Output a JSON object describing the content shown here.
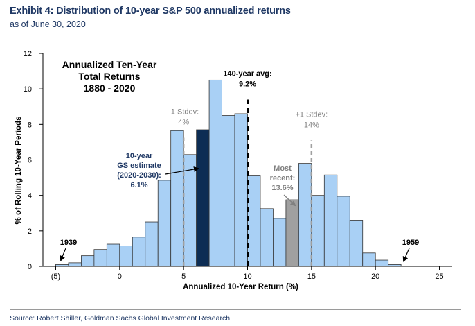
{
  "header": {
    "title": "Exhibit 4: Distribution of 10-year S&P 500 annualized returns",
    "subtitle": "as of June 30, 2020"
  },
  "footer": {
    "source": "Source: Robert Shiller, Goldman Sachs Global Investment Research"
  },
  "colors": {
    "bar": "#a9d0f5",
    "bar_estimate": "#0d2d54",
    "bar_recent": "#a0a0a0",
    "bar_stroke": "#333333",
    "avg_line": "#000000",
    "stdev_line": "#a0a0a0",
    "stdev_text": "#808080",
    "header_text": "#1f3864"
  },
  "chart_data": {
    "type": "bar",
    "title": "",
    "inset_title": [
      "Annualized Ten-Year",
      "Total Returns",
      "1880 - 2020"
    ],
    "xlabel": "Annualized 10-Year Return (%)",
    "ylabel": "% of Rolling 10-Year Periods",
    "xlim": [
      -6,
      26
    ],
    "ylim": [
      0,
      12
    ],
    "x_ticks": [
      -5,
      0,
      5,
      10,
      15,
      20,
      25
    ],
    "x_tick_labels": [
      "(5)",
      "0",
      "5",
      "10",
      "15",
      "20",
      "25"
    ],
    "y_ticks": [
      0,
      2,
      4,
      6,
      8,
      10,
      12
    ],
    "y_tick_labels": [
      "0",
      "2",
      "4",
      "6",
      "8",
      "10",
      "12"
    ],
    "bin_width": 1,
    "bins": [
      {
        "x": -4.5,
        "value": 0.1
      },
      {
        "x": -3.5,
        "value": 0.2
      },
      {
        "x": -2.5,
        "value": 0.6
      },
      {
        "x": -1.5,
        "value": 0.95
      },
      {
        "x": -0.5,
        "value": 1.25
      },
      {
        "x": 0.5,
        "value": 1.15
      },
      {
        "x": 1.5,
        "value": 1.65
      },
      {
        "x": 2.5,
        "value": 2.5
      },
      {
        "x": 3.5,
        "value": 4.85
      },
      {
        "x": 4.5,
        "value": 7.65
      },
      {
        "x": 5.5,
        "value": 6.3
      },
      {
        "x": 6.5,
        "value": 7.7,
        "highlight": "estimate"
      },
      {
        "x": 7.5,
        "value": 10.5
      },
      {
        "x": 8.5,
        "value": 8.5
      },
      {
        "x": 9.5,
        "value": 8.6
      },
      {
        "x": 10.5,
        "value": 5.1
      },
      {
        "x": 11.5,
        "value": 3.25
      },
      {
        "x": 12.5,
        "value": 2.7
      },
      {
        "x": 13.5,
        "value": 3.75,
        "highlight": "recent"
      },
      {
        "x": 14.5,
        "value": 5.8
      },
      {
        "x": 15.5,
        "value": 4.0
      },
      {
        "x": 16.5,
        "value": 5.15
      },
      {
        "x": 17.5,
        "value": 3.95
      },
      {
        "x": 18.5,
        "value": 2.6
      },
      {
        "x": 19.5,
        "value": 0.75
      },
      {
        "x": 20.5,
        "value": 0.35
      },
      {
        "x": 21.5,
        "value": 0.1
      }
    ],
    "reference_lines": [
      {
        "name": "avg",
        "x": 10,
        "y_top": 9.4,
        "label": [
          "140-year avg:",
          "9.2%"
        ]
      },
      {
        "name": "minus-stdev",
        "x": 5,
        "y_top": 7.25,
        "label": [
          "-1 Stdev:",
          "4%"
        ]
      },
      {
        "name": "plus-stdev",
        "x": 15,
        "y_top": 7.1,
        "label": [
          "+1 Stdev:",
          "14%"
        ]
      }
    ],
    "annotations": {
      "estimate": [
        "10-year",
        "GS estimate",
        "(2020-2030):",
        "6.1%"
      ],
      "recent": [
        "Most",
        "recent:",
        "13.6%"
      ],
      "year_low": "1939",
      "year_high": "1959"
    },
    "grid": false,
    "legend": "none"
  }
}
